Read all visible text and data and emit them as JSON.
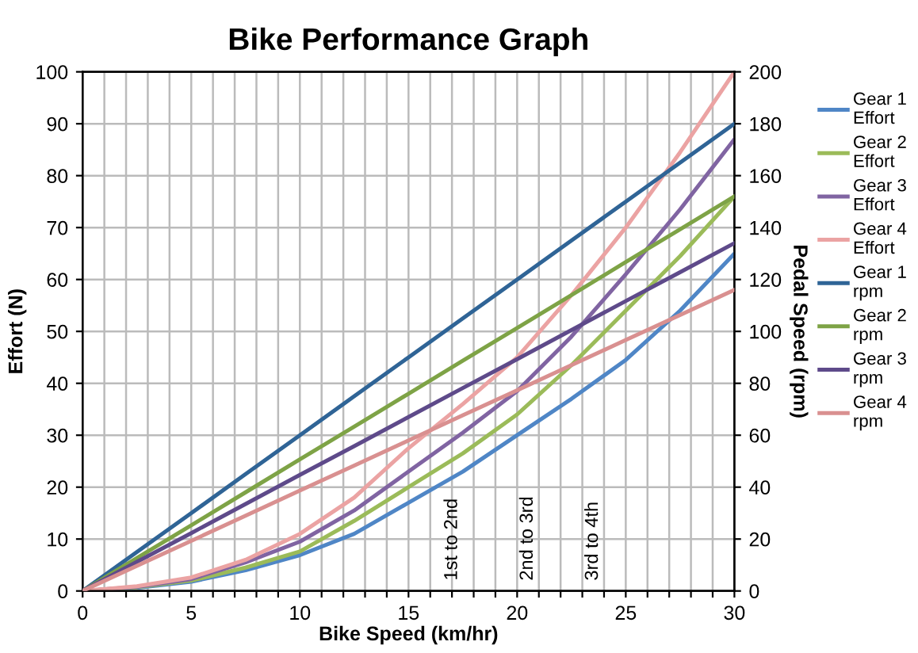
{
  "chart_data": {
    "type": "line",
    "title": "Bike Performance Graph",
    "xlabel": "Bike Speed (km/hr)",
    "ylabel": "Effort (N)",
    "y2label": "Pedal Speed (rpm)",
    "x": [
      0,
      2.5,
      5,
      7.5,
      10,
      12.5,
      15,
      17.5,
      20,
      22.5,
      25,
      27.5,
      30
    ],
    "series": [
      {
        "name": "Gear 1 Effort",
        "color": "#4f86c6",
        "values": [
          0,
          0.6,
          1.8,
          4,
          6.9,
          11,
          17,
          23,
          30,
          37,
          44.5,
          54,
          65
        ]
      },
      {
        "name": "Gear 2 Effort",
        "color": "#9bbb59",
        "values": [
          0,
          0.7,
          2,
          4.5,
          7.6,
          13.5,
          20,
          26.5,
          34,
          43.5,
          54,
          64.5,
          76
        ]
      },
      {
        "name": "Gear 3 Effort",
        "color": "#8064a2",
        "values": [
          0,
          0.8,
          2.3,
          5.5,
          9.5,
          15.5,
          23,
          30.5,
          38.5,
          49,
          61,
          73.5,
          87
        ]
      },
      {
        "name": "Gear 4 Effort",
        "color": "#eba3a3",
        "values": [
          0,
          0.9,
          2.6,
          6,
          11,
          18,
          27.5,
          36,
          45,
          57,
          70,
          84.5,
          100
        ]
      },
      {
        "name": "Gear 1 rpm",
        "color": "#2f6496",
        "axis": "y2",
        "values": [
          0,
          15,
          30,
          45,
          60,
          75,
          90,
          105,
          120,
          135,
          150,
          165,
          180
        ]
      },
      {
        "name": "Gear 2 rpm",
        "color": "#7ea346",
        "axis": "y2",
        "values": [
          0,
          12.7,
          25.3,
          38,
          50.7,
          63.3,
          76,
          88.7,
          101.3,
          114,
          126.7,
          139.3,
          152
        ]
      },
      {
        "name": "Gear 3 rpm",
        "color": "#5e4a8a",
        "axis": "y2",
        "values": [
          0,
          11.2,
          22.3,
          33.5,
          44.7,
          55.8,
          67,
          78.2,
          89.3,
          100.5,
          111.7,
          122.8,
          134
        ]
      },
      {
        "name": "Gear 4 rpm",
        "color": "#d99090",
        "axis": "y2",
        "values": [
          0,
          9.7,
          19.3,
          29,
          38.7,
          48.3,
          58,
          67.7,
          77.3,
          87,
          96.7,
          106.3,
          116
        ]
      }
    ],
    "xlim": [
      0,
      30
    ],
    "ylim": [
      0,
      100
    ],
    "y2lim": [
      0,
      200
    ],
    "xticks": [
      0,
      {
        "value": 1,
        "label": null
      },
      {
        "value": 2,
        "label": null
      },
      {
        "value": 3,
        "label": null
      },
      {
        "value": 4,
        "label": null
      },
      5,
      {
        "value": 6,
        "label": null
      },
      {
        "value": 7,
        "label": null
      },
      {
        "value": 8,
        "label": null
      },
      {
        "value": 9,
        "label": null
      },
      10,
      {
        "value": 11,
        "label": null
      },
      {
        "value": 12,
        "label": null
      },
      {
        "value": 13,
        "label": null
      },
      {
        "value": 14,
        "label": null
      },
      15,
      {
        "value": 16,
        "label": null
      },
      {
        "value": 17,
        "label": null
      },
      {
        "value": 18,
        "label": null
      },
      {
        "value": 19,
        "label": null
      },
      20,
      {
        "value": 21,
        "label": null
      },
      {
        "value": 22,
        "label": null
      },
      {
        "value": 23,
        "label": null
      },
      {
        "value": 24,
        "label": null
      },
      25,
      {
        "value": 26,
        "label": null
      },
      {
        "value": 27,
        "label": null
      },
      {
        "value": 28,
        "label": null
      },
      {
        "value": 29,
        "label": null
      },
      30
    ],
    "yticks": [
      0,
      10,
      20,
      30,
      40,
      50,
      60,
      70,
      80,
      90,
      100
    ],
    "y2ticks": [
      0,
      20,
      40,
      60,
      80,
      100,
      120,
      140,
      160,
      180,
      200
    ],
    "annotations": [
      "1st to 2nd",
      "2nd to 3rd",
      "3rd to 4th"
    ],
    "grid": true,
    "legend": "right",
    "marker": "none",
    "line_style": "solid"
  }
}
